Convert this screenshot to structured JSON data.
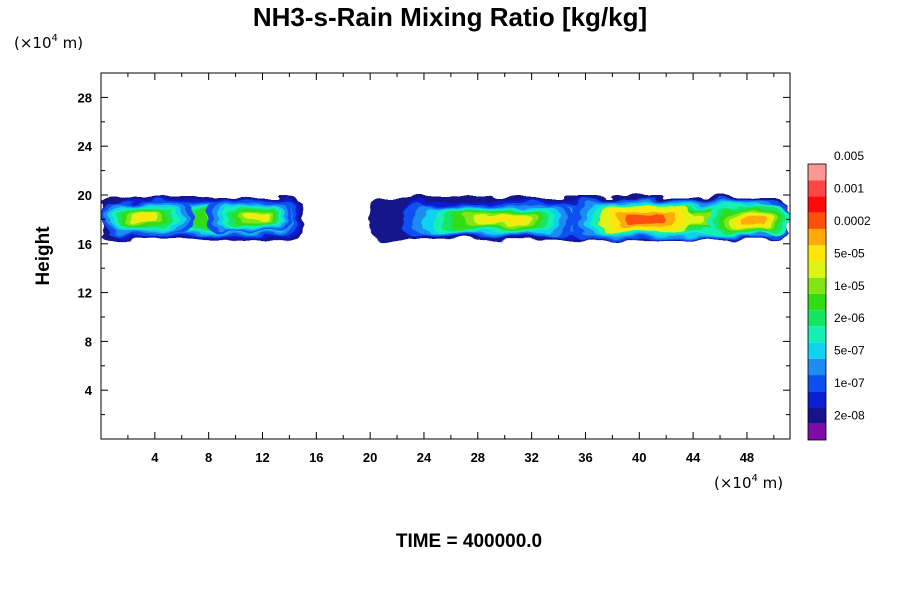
{
  "title": "NH3-s-Rain Mixing Ratio [kg/kg]",
  "time_label": "TIME = 400000.0",
  "chart_data": {
    "type": "heatmap",
    "title": "NH3-s-Rain Mixing Ratio [kg/kg]",
    "xlabel": "",
    "ylabel": "Height",
    "x_unit_prefix": "(×10",
    "x_unit_exp": "4",
    "x_unit_suffix": " m)",
    "y_unit_prefix": "(×10",
    "y_unit_exp": "4",
    "y_unit_suffix": " m)",
    "xlim": [
      0,
      51.2
    ],
    "ylim": [
      0,
      30
    ],
    "x_ticks": [
      4,
      8,
      12,
      16,
      20,
      24,
      28,
      32,
      36,
      40,
      44,
      48
    ],
    "y_ticks": [
      4,
      8,
      12,
      16,
      20,
      24,
      28
    ],
    "colorbar": {
      "colors": [
        "#7d0ca8",
        "#14128c",
        "#0a1ed2",
        "#0a50f0",
        "#1e8cf0",
        "#0fd2f0",
        "#14f0b4",
        "#14e664",
        "#32dc14",
        "#82e614",
        "#dcf514",
        "#ffe60a",
        "#ffaa0a",
        "#ff500a",
        "#ff0a0a",
        "#ff4646",
        "#ff9696"
      ],
      "labels": [
        "2e-08",
        "1e-07",
        "5e-07",
        "2e-06",
        "1e-05",
        "5e-05",
        "0.0002",
        "0.001",
        "0.005"
      ]
    },
    "cloud_layer": {
      "bottom_approx": 16.5,
      "top_approx": 19.8,
      "gap_x_range": [
        15.5,
        20.0
      ],
      "max_level": "0.001",
      "max_region_x_range": [
        37,
        44
      ]
    }
  }
}
